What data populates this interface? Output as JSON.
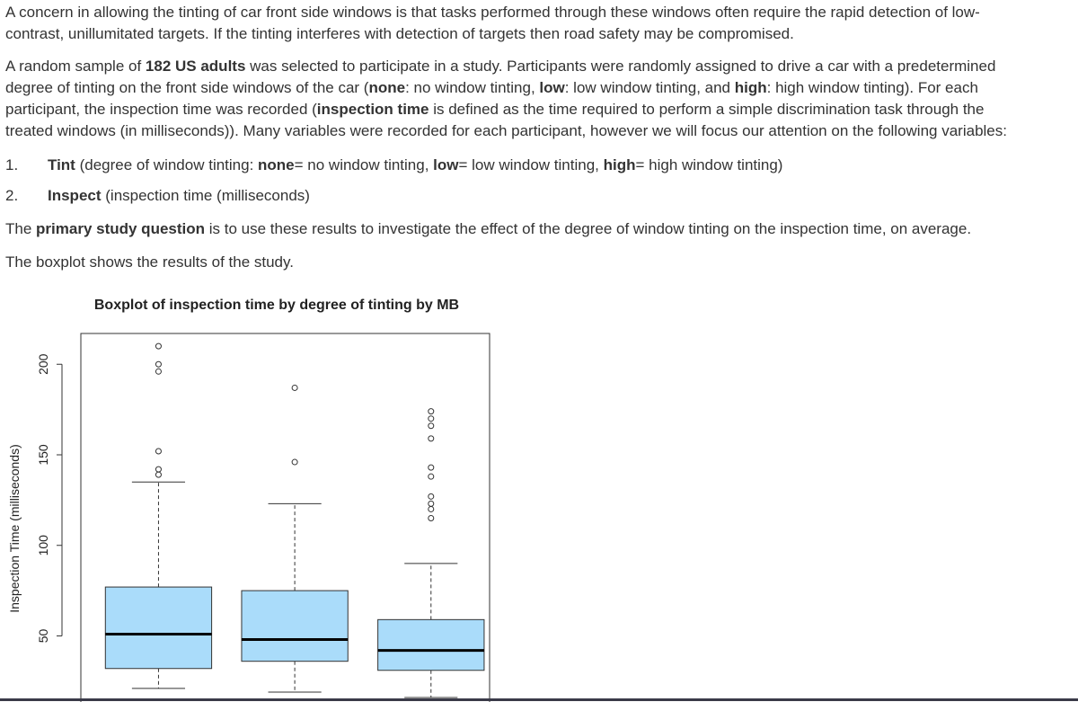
{
  "paragraphs": [
    [
      {
        "text": "A concern in allowing the tinting of car front side windows is that tasks performed through these windows often require the rapid detection of low-contrast, unillumitated targets.  If the tinting interferes with detection of targets then road safety may be compromised."
      }
    ],
    [
      {
        "text": "A random sample of "
      },
      {
        "text": "182 US adults",
        "bold": true
      },
      {
        "text": " was selected to participate in a study.  Participants were randomly assigned to drive a car with a predetermined degree of tinting on the front side windows of the car ("
      },
      {
        "text": "none",
        "bold": true
      },
      {
        "text": ": no window tinting, "
      },
      {
        "text": "low",
        "bold": true
      },
      {
        "text": ": low window tinting, and "
      },
      {
        "text": "high",
        "bold": true
      },
      {
        "text": ": high window tinting).  For each participant, the inspection time was recorded ("
      },
      {
        "text": "inspection time",
        "bold": true
      },
      {
        "text": " is defined as the time required to perform a simple discrimination task through the treated windows (in milliseconds)).  Many variables were recorded for each participant, however we will focus our attention on the following variables:"
      }
    ]
  ],
  "list": [
    {
      "number": "1.",
      "runs": [
        {
          "text": "Tint",
          "bold": true
        },
        {
          "text": " (degree of window tinting: "
        },
        {
          "text": "none",
          "bold": true
        },
        {
          "text": "= no window tinting, "
        },
        {
          "text": "low",
          "bold": true
        },
        {
          "text": "= low window tinting, "
        },
        {
          "text": "high",
          "bold": true
        },
        {
          "text": "= high window tinting)"
        }
      ]
    },
    {
      "number": "2.",
      "runs": [
        {
          "text": "Inspect",
          "bold": true
        },
        {
          "text": " (inspection time (milliseconds)"
        }
      ]
    }
  ],
  "after": [
    [
      {
        "text": "The "
      },
      {
        "text": "primary study question",
        "bold": true
      },
      {
        "text": " is to use these results to investigate the effect of the degree of window tinting on the inspection time, on average."
      }
    ],
    [
      {
        "text": "The boxplot shows the results of the study."
      }
    ]
  ],
  "chart_data": {
    "type": "boxplot",
    "title": "Boxplot of inspection time by degree of tinting by MB",
    "y_label": "Inspection Time (milliseconds)",
    "categories": [
      null,
      null,
      null
    ],
    "color": "#aadcfa",
    "ylim": [
      15,
      217
    ],
    "yticks": [
      50,
      100,
      150,
      200
    ],
    "boxes": [
      {
        "whisker_low": 21,
        "q1": 32,
        "median": 51,
        "q3": 77,
        "whisker_high": 135,
        "outliers": [
          210,
          200,
          196,
          152,
          142,
          139
        ]
      },
      {
        "whisker_low": 19,
        "q1": 36,
        "median": 48,
        "q3": 75,
        "whisker_high": 123,
        "outliers": [
          187,
          146
        ]
      },
      {
        "whisker_low": 16,
        "q1": 31,
        "median": 42,
        "q3": 59,
        "whisker_high": 90,
        "outliers": [
          174,
          170,
          166,
          159,
          143,
          138,
          127,
          123,
          120,
          115
        ]
      }
    ]
  }
}
